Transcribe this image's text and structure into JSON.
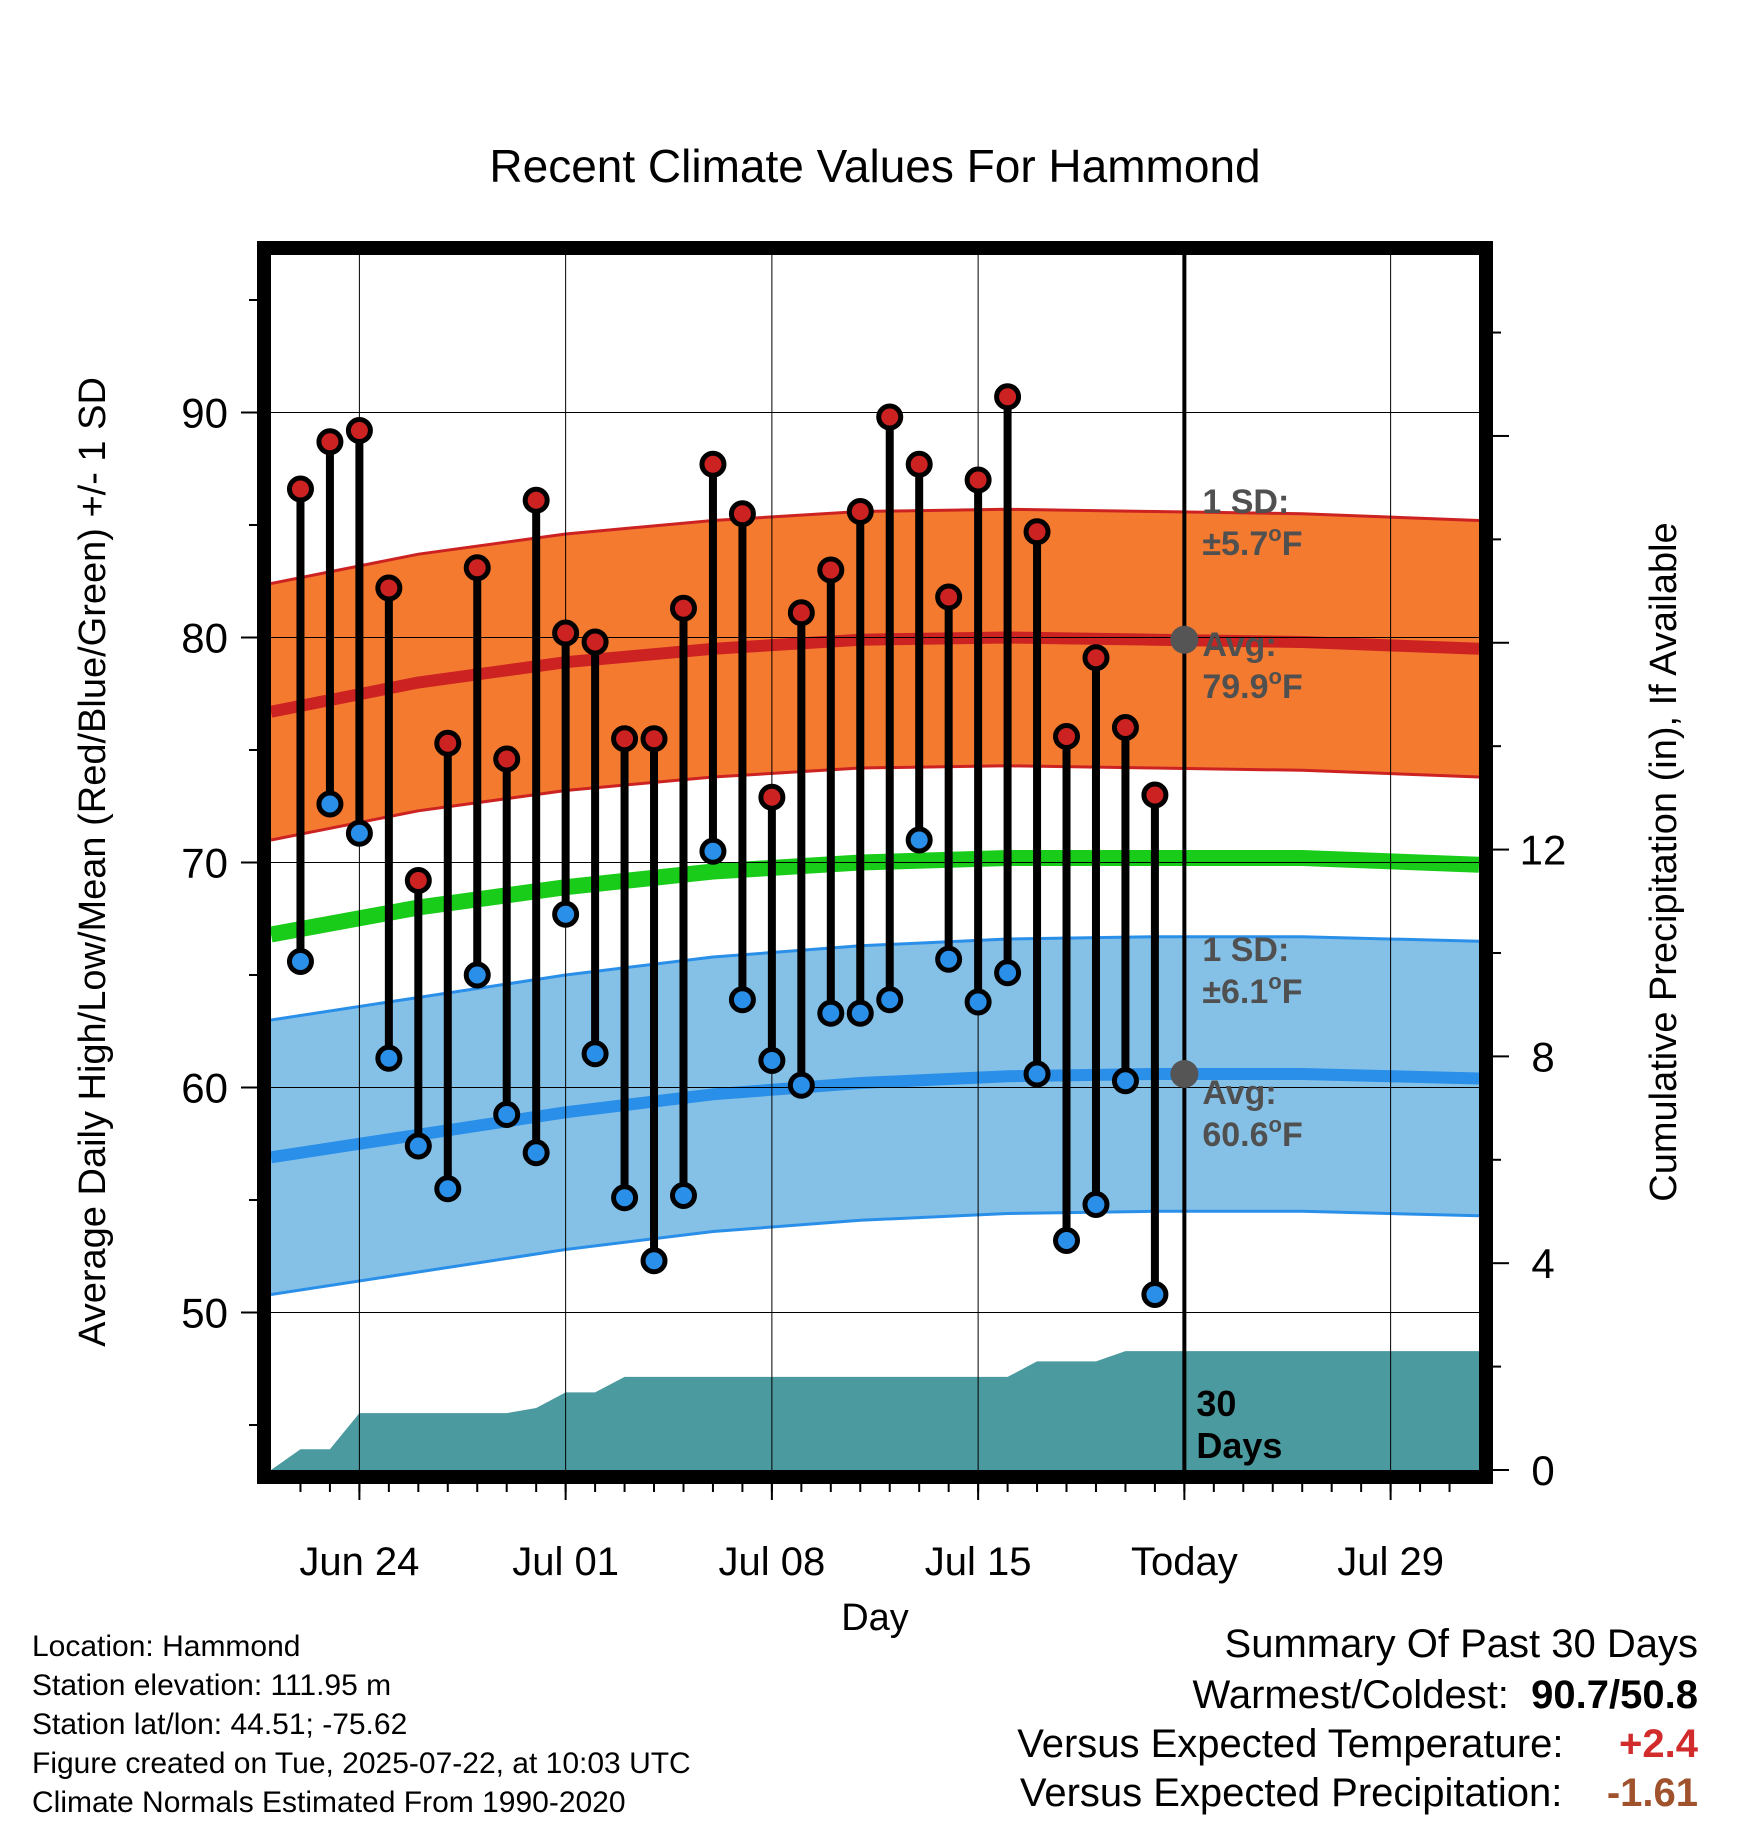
{
  "chart_data": {
    "type": "line",
    "title": "Recent Climate Values For Hammond",
    "xlabel": "Day",
    "ylabel": "Average Daily High/Low/Mean (Red/Blue/Green) +/- 1 SD",
    "y2label": "Cumulative Precipitation (in), If Available",
    "ylim": [
      43,
      97
    ],
    "y_ticks": [
      50,
      60,
      70,
      80,
      90
    ],
    "y2lim": [
      0,
      23.5
    ],
    "y2_ticks": [
      0,
      4,
      8,
      12
    ],
    "x_tick_labels": [
      "Jun 24",
      "Jul 01",
      "Jul 08",
      "Jul 15",
      "Today",
      "Jul 29"
    ],
    "x_tick_dates": [
      "2025-06-24",
      "2025-07-01",
      "2025-07-08",
      "2025-07-15",
      "2025-07-22",
      "2025-07-29"
    ],
    "xlim": [
      "2025-06-21",
      "2025-08-01"
    ],
    "today": "2025-07-22",
    "grid": true,
    "dates": [
      "2025-06-22",
      "2025-06-23",
      "2025-06-24",
      "2025-06-25",
      "2025-06-26",
      "2025-06-27",
      "2025-06-28",
      "2025-06-29",
      "2025-06-30",
      "2025-07-01",
      "2025-07-02",
      "2025-07-03",
      "2025-07-04",
      "2025-07-05",
      "2025-07-06",
      "2025-07-07",
      "2025-07-08",
      "2025-07-09",
      "2025-07-10",
      "2025-07-11",
      "2025-07-12",
      "2025-07-13",
      "2025-07-14",
      "2025-07-15",
      "2025-07-16",
      "2025-07-17",
      "2025-07-18",
      "2025-07-19",
      "2025-07-20",
      "2025-07-21"
    ],
    "series": [
      {
        "name": "High",
        "color": "#cc2222",
        "values": [
          86.6,
          88.7,
          89.2,
          82.2,
          69.2,
          75.3,
          83.1,
          74.6,
          86.1,
          80.2,
          79.8,
          75.5,
          75.5,
          81.3,
          87.7,
          85.5,
          72.9,
          81.1,
          83.0,
          85.6,
          89.8,
          87.7,
          81.8,
          87.0,
          90.7,
          84.7,
          75.6,
          79.1,
          76.0,
          73.0
        ]
      },
      {
        "name": "Low",
        "color": "#2a8fe8",
        "values": [
          65.6,
          72.6,
          71.3,
          61.3,
          57.4,
          55.5,
          65.0,
          58.8,
          57.1,
          67.7,
          61.5,
          55.1,
          52.3,
          55.2,
          70.5,
          63.9,
          61.2,
          60.1,
          63.3,
          63.3,
          63.9,
          71.0,
          65.7,
          63.8,
          65.1,
          60.6,
          53.2,
          54.8,
          60.3,
          50.8
        ]
      }
    ],
    "normals": {
      "dates": [
        "2025-06-21",
        "2025-06-26",
        "2025-07-01",
        "2025-07-06",
        "2025-07-11",
        "2025-07-16",
        "2025-07-21",
        "2025-07-26",
        "2025-08-01"
      ],
      "high_avg": [
        76.7,
        78.0,
        78.9,
        79.5,
        79.9,
        80.0,
        79.9,
        79.8,
        79.5
      ],
      "high_sd": 5.7,
      "low_avg": [
        56.9,
        57.9,
        58.9,
        59.7,
        60.2,
        60.5,
        60.6,
        60.6,
        60.4
      ],
      "low_sd": 6.1,
      "mean_avg": [
        66.8,
        68.0,
        68.9,
        69.6,
        70.0,
        70.2,
        70.2,
        70.2,
        69.9
      ]
    },
    "precip": {
      "dates": [
        "2025-06-21",
        "2025-06-22",
        "2025-06-23",
        "2025-06-24",
        "2025-06-29",
        "2025-06-30",
        "2025-07-01",
        "2025-07-02",
        "2025-07-03",
        "2025-07-07",
        "2025-07-16",
        "2025-07-17",
        "2025-07-19",
        "2025-07-20",
        "2025-08-01"
      ],
      "values": [
        0.0,
        0.4,
        0.4,
        1.1,
        1.1,
        1.2,
        1.5,
        1.5,
        1.8,
        1.8,
        1.8,
        2.1,
        2.1,
        2.3,
        2.3
      ]
    },
    "annotations": {
      "high_sd_label": "1 SD:",
      "high_sd_value": "±5.7",
      "high_avg_label": "Avg:",
      "high_avg_value": "79.9",
      "low_sd_label": "1 SD:",
      "low_sd_value": "±6.1",
      "low_avg_label": "Avg:",
      "low_avg_value": "60.6",
      "degree_sym": "o",
      "unit": "F",
      "precip_days_line1": "30",
      "precip_days_line2": "Days"
    },
    "colors": {
      "high_band": "#f47a2f",
      "high_edge": "#cc2222",
      "low_band": "#85c1e7",
      "low_edge": "#2a8fe8",
      "mean_line": "#19cc19",
      "precip_fill": "#4a9aa0",
      "today_marker": "#555555",
      "annotation_text": "#505050"
    }
  },
  "footer": {
    "location": "Location: Hammond",
    "elevation": "Station elevation: 111.95 m",
    "latlon": "Station lat/lon: 44.51; -75.62",
    "created": "Figure created on Tue, 2025-07-22, at 10:03 UTC",
    "normals": "Climate Normals Estimated From 1990-2020"
  },
  "summary": {
    "title": "Summary Of Past 30 Days",
    "warm_cold_label": "Warmest/Coldest:",
    "warmest": "90.7",
    "slash": "/",
    "coldest": "50.8",
    "temp_label": "Versus Expected Temperature:",
    "temp_value": "+2.4",
    "temp_color": "#d22b2b",
    "precip_label": "Versus Expected Precipitation:",
    "precip_value": "-1.61",
    "precip_color": "#a0522d"
  }
}
